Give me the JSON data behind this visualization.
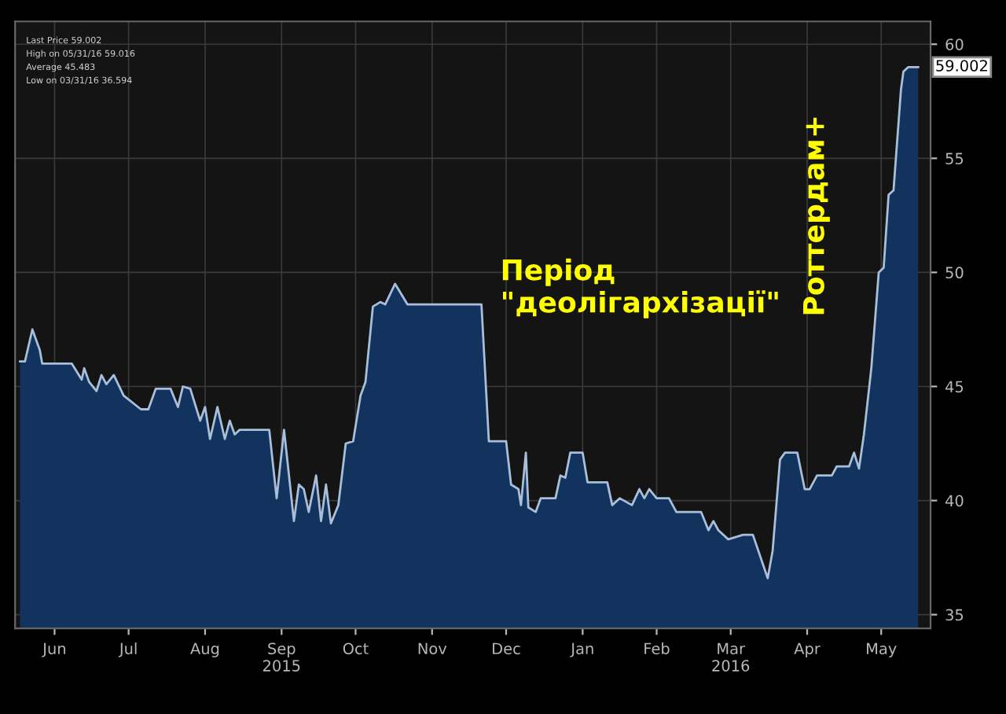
{
  "chart_data": {
    "type": "area",
    "x": [
      "2015-06-02",
      "2015-06-04",
      "2015-06-07",
      "2015-06-10",
      "2015-06-11",
      "2015-06-23",
      "2015-06-27",
      "2015-06-28",
      "2015-06-30",
      "2015-07-03",
      "2015-07-05",
      "2015-07-07",
      "2015-07-10",
      "2015-07-14",
      "2015-07-21",
      "2015-07-24",
      "2015-07-27",
      "2015-08-02",
      "2015-08-05",
      "2015-08-07",
      "2015-08-10",
      "2015-08-14",
      "2015-08-16",
      "2015-08-18",
      "2015-08-21",
      "2015-08-24",
      "2015-08-26",
      "2015-08-28",
      "2015-08-30",
      "2015-09-01",
      "2015-09-11",
      "2015-09-14",
      "2015-09-17",
      "2015-09-21",
      "2015-09-23",
      "2015-09-25",
      "2015-09-27",
      "2015-09-30",
      "2015-10-02",
      "2015-10-04",
      "2015-10-06",
      "2015-10-09",
      "2015-10-12",
      "2015-10-15",
      "2015-10-18",
      "2015-10-20",
      "2015-10-23",
      "2015-10-26",
      "2015-10-28",
      "2015-11-01",
      "2015-11-06",
      "2015-12-06",
      "2015-12-09",
      "2015-12-16",
      "2015-12-18",
      "2015-12-21",
      "2015-12-22",
      "2015-12-24",
      "2015-12-25",
      "2015-12-28",
      "2015-12-30",
      "2016-01-05",
      "2016-01-07",
      "2016-01-09",
      "2016-01-11",
      "2016-01-16",
      "2016-01-18",
      "2016-01-26",
      "2016-01-28",
      "2016-01-31",
      "2016-02-05",
      "2016-02-08",
      "2016-02-10",
      "2016-02-12",
      "2016-02-15",
      "2016-02-20",
      "2016-02-23",
      "2016-03-04",
      "2016-03-07",
      "2016-03-09",
      "2016-03-11",
      "2016-03-15",
      "2016-03-21",
      "2016-03-25",
      "2016-03-31",
      "2016-04-02",
      "2016-04-05",
      "2016-04-07",
      "2016-04-12",
      "2016-04-15",
      "2016-04-17",
      "2016-04-20",
      "2016-04-26",
      "2016-04-28",
      "2016-05-03",
      "2016-05-05",
      "2016-05-07",
      "2016-05-09",
      "2016-05-12",
      "2016-05-15",
      "2016-05-17",
      "2016-05-19",
      "2016-05-21",
      "2016-05-24",
      "2016-05-25",
      "2016-05-27",
      "2016-05-31"
    ],
    "series": [
      {
        "color": "#a9bfd9",
        "values": [
          46.1,
          46.1,
          47.5,
          46.6,
          46.0,
          46.0,
          45.3,
          45.8,
          45.2,
          44.8,
          45.5,
          45.1,
          45.5,
          44.6,
          44.0,
          44.0,
          44.9,
          44.9,
          44.1,
          45.0,
          44.9,
          43.5,
          44.1,
          42.7,
          44.1,
          42.7,
          43.5,
          42.9,
          43.1,
          43.1,
          43.1,
          40.1,
          43.1,
          39.1,
          40.7,
          40.5,
          39.5,
          41.1,
          39.1,
          40.7,
          39.0,
          39.8,
          42.5,
          42.6,
          44.6,
          45.2,
          48.5,
          48.7,
          48.6,
          49.5,
          48.6,
          48.6,
          42.6,
          42.6,
          40.7,
          40.5,
          39.8,
          42.1,
          39.7,
          39.5,
          40.1,
          40.1,
          41.1,
          41.0,
          42.1,
          42.1,
          40.8,
          40.8,
          39.8,
          40.1,
          39.8,
          40.5,
          40.1,
          40.5,
          40.1,
          40.1,
          39.5,
          39.5,
          38.7,
          39.1,
          38.7,
          38.3,
          38.5,
          38.5,
          36.6,
          37.8,
          41.8,
          42.1,
          42.1,
          40.5,
          40.5,
          41.1,
          41.1,
          41.5,
          41.5,
          42.1,
          41.4,
          42.9,
          45.8,
          50.0,
          50.2,
          53.4,
          53.6,
          58.0,
          58.8,
          59.0,
          59.0
        ]
      }
    ],
    "xlim": [
      "2015-05-31",
      "2016-06-05"
    ],
    "xticks": [
      {
        "value": "2015-06-16",
        "label": "Jun"
      },
      {
        "value": "2015-07-16",
        "label": "Jul"
      },
      {
        "value": "2015-08-16",
        "label": "Aug"
      },
      {
        "value": "2015-09-16",
        "label": "Sep\n2015"
      },
      {
        "value": "2015-10-16",
        "label": "Oct"
      },
      {
        "value": "2015-11-16",
        "label": "Nov"
      },
      {
        "value": "2015-12-16",
        "label": "Dec"
      },
      {
        "value": "2016-01-16",
        "label": "Jan"
      },
      {
        "value": "2016-02-15",
        "label": "Feb"
      },
      {
        "value": "2016-03-16",
        "label": "Mar\n2016"
      },
      {
        "value": "2016-04-16",
        "label": "Apr"
      },
      {
        "value": "2016-05-16",
        "label": "May"
      }
    ],
    "ylim": [
      34.4,
      61
    ],
    "yticks": [
      35,
      40,
      45,
      50,
      55,
      60
    ],
    "grid": true,
    "annotations": [
      "Період\n\"деолігархізації\"",
      "Роттердам+",
      "Last Price 59.002",
      "High on 05/31/16 59.016",
      "Average 45.483",
      "Low on 03/31/16 36.594",
      {
        "text": "59.002",
        "x": "2016-05-31",
        "y": 59.002
      }
    ]
  }
}
